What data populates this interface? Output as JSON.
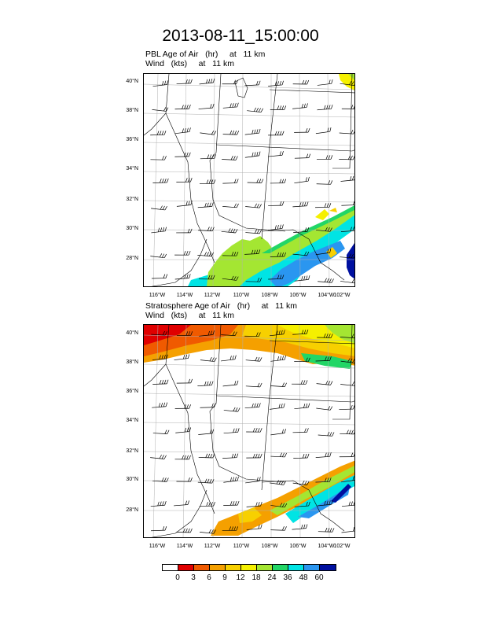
{
  "title": "2013-08-11_15:00:00",
  "panels": [
    {
      "line1": "PBL Age of Air   (hr)     at   11 km",
      "line2": "Wind   (kts)     at   11 km"
    },
    {
      "line1": "Stratosphere Age of Air   (hr)     at   11 km",
      "line2": "Wind   (kts)     at   11 km"
    }
  ],
  "lat_labels": [
    "40°N",
    "38°N",
    "36°N",
    "34°N",
    "32°N",
    "30°N",
    "28°N"
  ],
  "lon_labels": [
    "116°W",
    "114°W",
    "112°W",
    "110°W",
    "108°W",
    "106°W",
    "104°W",
    "102°W"
  ],
  "colorbar": {
    "colors": [
      "#ffffff",
      "#e00000",
      "#f05a00",
      "#f5a000",
      "#f7d000",
      "#f5f000",
      "#a4e632",
      "#22d666",
      "#00e4e4",
      "#2a96f0",
      "#0010a0"
    ],
    "labels": [
      "0",
      "3",
      "6",
      "9",
      "12",
      "18",
      "24",
      "36",
      "48",
      "60"
    ]
  }
}
